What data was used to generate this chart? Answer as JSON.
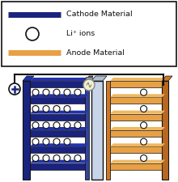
{
  "cathode_color": "#1a237e",
  "anode_color": "#e8a044",
  "separator_color": "#c8d4e8",
  "bg_color": "#ffffff",
  "outline_color": "#111111",
  "cathode_label": "Cathode Material",
  "ion_label": "Li⁺ ions",
  "anode_label": "Anode Material",
  "bulb_color": "#f0f0d0",
  "wire_color": "#111111",
  "cathode_frame_color": "#162060",
  "anode_frame_color": "#b86820",
  "sep_top_color": "#b0bcd0",
  "cathode_3d_color": "#2233aa"
}
